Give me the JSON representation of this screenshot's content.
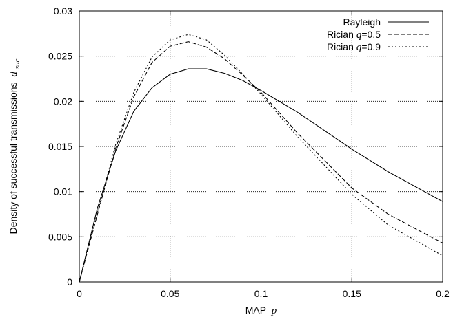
{
  "chart_data": {
    "type": "line",
    "xlabel": {
      "text": "MAP",
      "var": "p"
    },
    "ylabel": {
      "text": "Density of successful transmissions",
      "var": "d",
      "sub": "suc"
    },
    "xlim": [
      0,
      0.2
    ],
    "ylim": [
      0,
      0.03
    ],
    "x_ticks": [
      0,
      0.05,
      0.1,
      0.15,
      0.2
    ],
    "x_tick_labels": [
      "0",
      "0.05",
      "0.1",
      "0.15",
      "0.2"
    ],
    "y_ticks": [
      0,
      0.005,
      0.01,
      0.015,
      0.02,
      0.025,
      0.03
    ],
    "y_tick_labels": [
      "0",
      "0.005",
      "0.01",
      "0.015",
      "0.02",
      "0.025",
      "0.03"
    ],
    "grid": true,
    "legend_position": "top-right",
    "series": [
      {
        "name": "Rayleigh",
        "name_var": "",
        "name_value": "",
        "dash": "solid",
        "x": [
          0,
          0.01,
          0.02,
          0.03,
          0.04,
          0.05,
          0.06,
          0.07,
          0.08,
          0.09,
          0.1,
          0.12,
          0.15,
          0.17,
          0.2
        ],
        "y": [
          0,
          0.0082,
          0.0145,
          0.0189,
          0.0215,
          0.023,
          0.0236,
          0.0236,
          0.0231,
          0.0223,
          0.0212,
          0.0188,
          0.0147,
          0.0122,
          0.0089
        ]
      },
      {
        "name": "Rician",
        "name_var": "q",
        "name_value": "=0.5",
        "dash": "dashed",
        "x": [
          0,
          0.01,
          0.02,
          0.03,
          0.04,
          0.05,
          0.06,
          0.07,
          0.08,
          0.09,
          0.1,
          0.12,
          0.15,
          0.17,
          0.2
        ],
        "y": [
          0,
          0.0075,
          0.0148,
          0.0205,
          0.0243,
          0.0261,
          0.0266,
          0.026,
          0.0247,
          0.0229,
          0.021,
          0.0165,
          0.0104,
          0.0075,
          0.0043
        ]
      },
      {
        "name": "Rician",
        "name_var": "q",
        "name_value": "=0.9",
        "dash": "dotted",
        "x": [
          0,
          0.01,
          0.02,
          0.03,
          0.04,
          0.05,
          0.06,
          0.07,
          0.08,
          0.09,
          0.1,
          0.12,
          0.15,
          0.17,
          0.2
        ],
        "y": [
          0,
          0.0077,
          0.0152,
          0.021,
          0.0249,
          0.0268,
          0.0274,
          0.0268,
          0.0251,
          0.023,
          0.0208,
          0.0161,
          0.0097,
          0.0063,
          0.0029
        ]
      }
    ]
  }
}
